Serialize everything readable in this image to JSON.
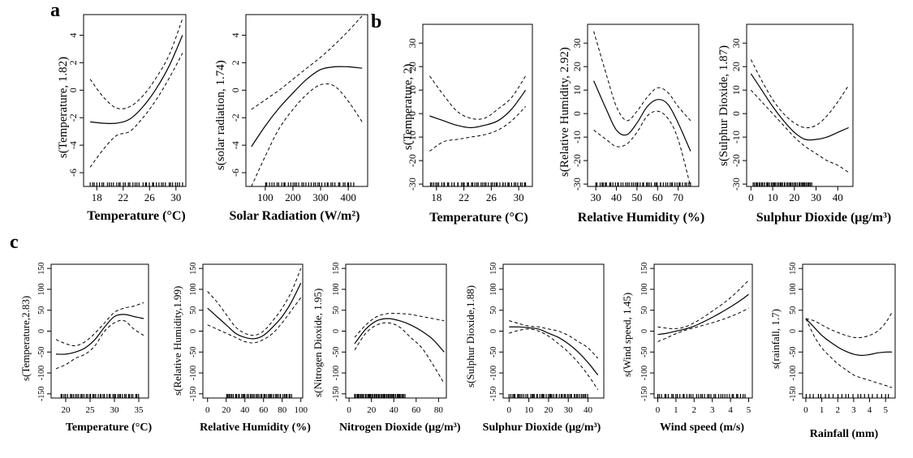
{
  "panel_labels": {
    "a": "a",
    "b": "b",
    "c": "c"
  },
  "chart_data": [
    {
      "id": "a1",
      "type": "line",
      "ylabel": "s(Temperature, 1.82)",
      "xlabel": "Temperature (°C)",
      "xlim": [
        16,
        31.5
      ],
      "ylim": [
        -7,
        5.5
      ],
      "xticks": [
        18,
        22,
        26,
        30
      ],
      "yticks": [
        -6,
        -4,
        -2,
        0,
        2,
        4
      ],
      "fit": {
        "x": [
          17,
          19,
          21,
          23,
          25,
          27,
          29,
          31
        ],
        "y": [
          -2.3,
          -2.4,
          -2.4,
          -2.1,
          -1.2,
          0.1,
          1.8,
          4.0
        ]
      },
      "upper": {
        "x": [
          17,
          19,
          21,
          23,
          25,
          27,
          29,
          31
        ],
        "y": [
          0.8,
          -0.5,
          -1.3,
          -1.2,
          -0.4,
          0.9,
          2.6,
          5.2
        ]
      },
      "lower": {
        "x": [
          17,
          19,
          21,
          23,
          25,
          27,
          29,
          31
        ],
        "y": [
          -5.6,
          -4.3,
          -3.3,
          -3.0,
          -2.0,
          -0.7,
          0.9,
          2.7
        ]
      },
      "rug": {
        "from": 17,
        "to": 31,
        "density": 40
      }
    },
    {
      "id": "a2",
      "type": "line",
      "ylabel": "s(solar radiation, 1.74)",
      "xlabel": "Solar Radiation (W/m²)",
      "xlim": [
        30,
        470
      ],
      "ylim": [
        -7,
        5.5
      ],
      "xticks": [
        100,
        200,
        300,
        400
      ],
      "yticks": [
        -6,
        -4,
        -2,
        0,
        2,
        4
      ],
      "fit": {
        "x": [
          50,
          100,
          150,
          200,
          250,
          300,
          350,
          400,
          450
        ],
        "y": [
          -4.1,
          -2.6,
          -1.3,
          -0.2,
          0.8,
          1.5,
          1.7,
          1.7,
          1.6
        ]
      },
      "upper": {
        "x": [
          50,
          100,
          150,
          200,
          250,
          300,
          350,
          400,
          450
        ],
        "y": [
          -1.4,
          -0.7,
          0.0,
          0.8,
          1.6,
          2.4,
          3.3,
          4.3,
          5.4
        ]
      },
      "lower": {
        "x": [
          50,
          100,
          150,
          200,
          250,
          300,
          350,
          400,
          450
        ],
        "y": [
          -7,
          -4.8,
          -2.8,
          -1.4,
          -0.3,
          0.4,
          0.3,
          -0.8,
          -2.3
        ]
      },
      "rug": {
        "from": 100,
        "to": 420,
        "density": 40
      }
    },
    {
      "id": "b1",
      "type": "line",
      "ylabel": "s(Temperature, 2)",
      "xlabel": "Temperature (°C)",
      "xlim": [
        16,
        32
      ],
      "ylim": [
        -31,
        38
      ],
      "xticks": [
        18,
        22,
        26,
        30
      ],
      "yticks": [
        -30,
        -20,
        -10,
        0,
        10,
        20,
        30
      ],
      "fit": {
        "x": [
          17,
          19,
          21,
          23,
          25,
          27,
          29,
          31
        ],
        "y": [
          -1,
          -3,
          -5,
          -6,
          -5,
          -3,
          2,
          10
        ]
      },
      "upper": {
        "x": [
          17,
          19,
          21,
          23,
          25,
          27,
          29,
          31
        ],
        "y": [
          16,
          8,
          1,
          -2,
          -2,
          2,
          7,
          16
        ]
      },
      "lower": {
        "x": [
          17,
          19,
          21,
          23,
          25,
          27,
          29,
          31
        ],
        "y": [
          -16,
          -12,
          -11,
          -10,
          -9,
          -7,
          -3,
          3
        ]
      },
      "rug": {
        "from": 17,
        "to": 31,
        "density": 50
      }
    },
    {
      "id": "b2",
      "type": "line",
      "ylabel": "s(Relative Humidity, 2.92)",
      "xlabel": "Relative Humidity (%)",
      "xlim": [
        26,
        80
      ],
      "ylim": [
        -31,
        38
      ],
      "xticks": [
        30,
        40,
        50,
        60,
        70
      ],
      "yticks": [
        -30,
        -20,
        -10,
        0,
        10,
        20,
        30
      ],
      "fit": {
        "x": [
          29,
          35,
          40,
          45,
          50,
          55,
          60,
          65,
          70,
          76
        ],
        "y": [
          14,
          2,
          -7,
          -9,
          -4,
          3,
          6,
          4,
          -4,
          -16
        ]
      },
      "upper": {
        "x": [
          29,
          35,
          40,
          45,
          50,
          55,
          60,
          65,
          70,
          76
        ],
        "y": [
          35,
          17,
          3,
          -3,
          1,
          7,
          11,
          9,
          3,
          -3
        ]
      },
      "lower": {
        "x": [
          29,
          35,
          40,
          45,
          50,
          55,
          60,
          65,
          70,
          76
        ],
        "y": [
          -7,
          -11,
          -14,
          -13,
          -8,
          -1,
          1,
          -2,
          -11,
          -31
        ]
      },
      "rug": {
        "from": 30,
        "to": 76,
        "density": 50
      }
    },
    {
      "id": "b3",
      "type": "line",
      "ylabel": "s(Sulphur Dioxide, 1.87)",
      "xlabel": "Sulphur Dioxide (μg/m³)",
      "xlim": [
        -2,
        47
      ],
      "ylim": [
        -31,
        38
      ],
      "xticks": [
        0,
        10,
        20,
        30,
        40
      ],
      "yticks": [
        -30,
        -20,
        -10,
        0,
        10,
        20,
        30
      ],
      "fit": {
        "x": [
          0,
          5,
          10,
          15,
          20,
          25,
          30,
          35,
          40,
          45
        ],
        "y": [
          17,
          10,
          3,
          -3,
          -8,
          -11,
          -11,
          -10,
          -8,
          -6
        ]
      },
      "upper": {
        "x": [
          0,
          5,
          10,
          15,
          20,
          25,
          30,
          35,
          40,
          45
        ],
        "y": [
          23,
          14,
          6,
          0,
          -4,
          -6,
          -5,
          -1,
          5,
          12
        ]
      },
      "lower": {
        "x": [
          0,
          5,
          10,
          15,
          20,
          25,
          30,
          35,
          40,
          45
        ],
        "y": [
          10,
          5,
          0,
          -5,
          -10,
          -14,
          -17,
          -20,
          -22,
          -25
        ]
      },
      "rug": {
        "from": 1,
        "to": 28,
        "density": 50
      }
    },
    {
      "id": "c1",
      "type": "line",
      "ylabel": "s(Temperature,2.83)",
      "xlabel": "Temperature (°C)",
      "xlim": [
        17,
        37
      ],
      "ylim": [
        -160,
        160
      ],
      "xticks": [
        20,
        25,
        30,
        35
      ],
      "yticks": [
        -150,
        -100,
        -50,
        0,
        50,
        100,
        150
      ],
      "fit": {
        "x": [
          18,
          20,
          22,
          24,
          26,
          28,
          30,
          32,
          34,
          36
        ],
        "y": [
          -55,
          -55,
          -50,
          -40,
          -20,
          10,
          35,
          40,
          35,
          30
        ]
      },
      "upper": {
        "x": [
          18,
          20,
          22,
          24,
          26,
          28,
          30,
          32,
          34,
          36
        ],
        "y": [
          -20,
          -30,
          -35,
          -25,
          -5,
          20,
          45,
          55,
          60,
          68
        ]
      },
      "lower": {
        "x": [
          18,
          20,
          22,
          24,
          26,
          28,
          30,
          32,
          34,
          36
        ],
        "y": [
          -90,
          -80,
          -65,
          -55,
          -35,
          0,
          20,
          25,
          5,
          -10
        ]
      },
      "rug": {
        "from": 19,
        "to": 35,
        "density": 45
      }
    },
    {
      "id": "c2",
      "type": "line",
      "ylabel": "s(Relative Humidity,1.99)",
      "xlabel": "Relative Humidity (%)",
      "xlim": [
        -5,
        102
      ],
      "ylim": [
        -160,
        160
      ],
      "xticks": [
        0,
        20,
        40,
        60,
        80,
        100
      ],
      "yticks": [
        -150,
        -100,
        -50,
        0,
        50,
        100,
        150
      ],
      "fit": {
        "x": [
          0,
          10,
          20,
          30,
          40,
          50,
          60,
          70,
          80,
          90,
          100
        ],
        "y": [
          55,
          35,
          15,
          -5,
          -15,
          -18,
          -10,
          10,
          35,
          70,
          115
        ]
      },
      "upper": {
        "x": [
          0,
          10,
          20,
          30,
          40,
          50,
          60,
          70,
          80,
          90,
          100
        ],
        "y": [
          95,
          70,
          40,
          10,
          -5,
          -10,
          0,
          25,
          55,
          95,
          150
        ]
      },
      "lower": {
        "x": [
          0,
          10,
          20,
          30,
          40,
          50,
          60,
          70,
          80,
          90,
          100
        ],
        "y": [
          15,
          5,
          -5,
          -15,
          -25,
          -28,
          -20,
          -5,
          20,
          50,
          80
        ]
      },
      "rug": {
        "from": 20,
        "to": 90,
        "density": 45
      }
    },
    {
      "id": "c3",
      "type": "line",
      "ylabel": "s(Nitrogen Dioxide, 1.95)",
      "xlabel": "Nitrogen Dioxide (μg/m³)",
      "xlim": [
        -3,
        87
      ],
      "ylim": [
        -160,
        160
      ],
      "xticks": [
        0,
        20,
        40,
        60,
        80
      ],
      "yticks": [
        -150,
        -100,
        -50,
        0,
        50,
        100,
        150
      ],
      "fit": {
        "x": [
          5,
          15,
          25,
          35,
          45,
          55,
          65,
          75,
          85
        ],
        "y": [
          -30,
          5,
          25,
          30,
          25,
          15,
          0,
          -20,
          -50
        ]
      },
      "upper": {
        "x": [
          5,
          15,
          25,
          35,
          45,
          55,
          65,
          75,
          85
        ],
        "y": [
          -15,
          15,
          35,
          42,
          42,
          40,
          35,
          30,
          25
        ]
      },
      "lower": {
        "x": [
          5,
          15,
          25,
          35,
          45,
          55,
          65,
          75,
          85
        ],
        "y": [
          -45,
          -5,
          15,
          20,
          10,
          -15,
          -40,
          -80,
          -125
        ]
      },
      "rug": {
        "from": 5,
        "to": 50,
        "density": 45
      }
    },
    {
      "id": "c4",
      "type": "line",
      "ylabel": "s(Sulphur Dioxide,1.88)",
      "xlabel": "Sulphur Dioxide (μg/m³)",
      "xlim": [
        -3,
        48
      ],
      "ylim": [
        -160,
        160
      ],
      "xticks": [
        0,
        10,
        20,
        30,
        40
      ],
      "yticks": [
        -150,
        -100,
        -50,
        0,
        50,
        100,
        150
      ],
      "fit": {
        "x": [
          0,
          5,
          10,
          15,
          20,
          25,
          30,
          35,
          40,
          45
        ],
        "y": [
          10,
          10,
          8,
          5,
          -5,
          -15,
          -30,
          -50,
          -75,
          -105
        ]
      },
      "upper": {
        "x": [
          0,
          5,
          10,
          15,
          20,
          25,
          30,
          35,
          40,
          45
        ],
        "y": [
          25,
          18,
          12,
          10,
          5,
          0,
          -10,
          -25,
          -40,
          -65
        ]
      },
      "lower": {
        "x": [
          0,
          5,
          10,
          15,
          20,
          25,
          30,
          35,
          40,
          45
        ],
        "y": [
          -5,
          2,
          5,
          0,
          -12,
          -30,
          -50,
          -75,
          -105,
          -140
        ]
      },
      "rug": {
        "from": 0,
        "to": 40,
        "density": 50
      }
    },
    {
      "id": "c5",
      "type": "line",
      "ylabel": "s(Wind speed, 1.45)",
      "xlabel": "Wind speed (m/s)",
      "xlim": [
        -0.2,
        5.2
      ],
      "ylim": [
        -160,
        160
      ],
      "xticks": [
        0,
        1,
        2,
        3,
        4,
        5
      ],
      "yticks": [
        -150,
        -100,
        -50,
        0,
        50,
        100,
        150
      ],
      "fit": {
        "x": [
          0,
          0.5,
          1,
          1.5,
          2,
          2.5,
          3,
          3.5,
          4,
          4.5,
          5
        ],
        "y": [
          -8,
          -5,
          0,
          5,
          12,
          22,
          33,
          45,
          58,
          72,
          88
        ]
      },
      "upper": {
        "x": [
          0,
          0.5,
          1,
          1.5,
          2,
          2.5,
          3,
          3.5,
          4,
          4.5,
          5
        ],
        "y": [
          10,
          7,
          6,
          10,
          20,
          33,
          48,
          63,
          80,
          100,
          122
        ]
      },
      "lower": {
        "x": [
          0,
          0.5,
          1,
          1.5,
          2,
          2.5,
          3,
          3.5,
          4,
          4.5,
          5
        ],
        "y": [
          -25,
          -16,
          -6,
          2,
          8,
          14,
          20,
          27,
          35,
          44,
          55
        ]
      },
      "rug": {
        "from": 0,
        "to": 4.8,
        "density": 40
      }
    },
    {
      "id": "c6",
      "type": "line",
      "ylabel": "s(rainfall, 1.7)",
      "xlabel": "Rainfall (mm)",
      "xlim": [
        -0.2,
        5.6
      ],
      "ylim": [
        -160,
        160
      ],
      "xticks": [
        0,
        1,
        2,
        3,
        4,
        5
      ],
      "yticks": [
        -150,
        -100,
        -50,
        0,
        50,
        100,
        150
      ],
      "fit": {
        "x": [
          0,
          0.5,
          1,
          1.5,
          2,
          2.5,
          3,
          3.5,
          4,
          4.5,
          5,
          5.4
        ],
        "y": [
          30,
          10,
          -10,
          -25,
          -38,
          -48,
          -55,
          -58,
          -56,
          -52,
          -50,
          -50
        ]
      },
      "upper": {
        "x": [
          0,
          0.5,
          1,
          1.5,
          2,
          2.5,
          3,
          3.5,
          4,
          4.5,
          5,
          5.4
        ],
        "y": [
          30,
          25,
          15,
          5,
          -3,
          -10,
          -15,
          -15,
          -10,
          0,
          20,
          45
        ]
      },
      "lower": {
        "x": [
          0,
          0.5,
          1,
          1.5,
          2,
          2.5,
          3,
          3.5,
          4,
          4.5,
          5,
          5.4
        ],
        "y": [
          30,
          -10,
          -40,
          -60,
          -78,
          -92,
          -105,
          -112,
          -118,
          -124,
          -130,
          -135
        ]
      },
      "rug": {
        "from": 0,
        "to": 5.2,
        "density": 22
      }
    }
  ]
}
